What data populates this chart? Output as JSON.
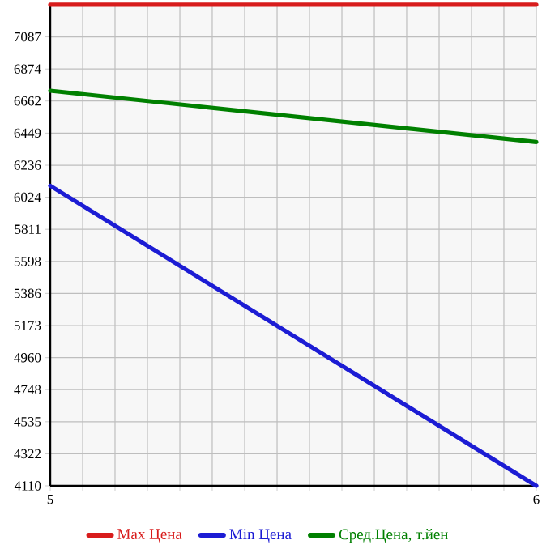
{
  "chart_data": {
    "type": "line",
    "x": [
      5,
      6
    ],
    "series": [
      {
        "name": "Max Цена",
        "color": "#d81c1c",
        "values": [
          7300,
          7300
        ]
      },
      {
        "name": "Min Цена",
        "color": "#1c1cd4",
        "values": [
          6100,
          4110
        ]
      },
      {
        "name": "Сред.Цена, т.йен",
        "color": "#008000",
        "values": [
          6730,
          6390
        ]
      }
    ],
    "xlim": [
      5,
      6
    ],
    "xticks": [
      5,
      {
        "value": 5.0667,
        "label": null
      },
      {
        "value": 5.1333,
        "label": null
      },
      {
        "value": 5.2,
        "label": null
      },
      {
        "value": 5.2667,
        "label": null
      },
      {
        "value": 5.3333,
        "label": null
      },
      {
        "value": 5.4,
        "label": null
      },
      {
        "value": 5.4667,
        "label": null
      },
      {
        "value": 5.5333,
        "label": null
      },
      {
        "value": 5.6,
        "label": null
      },
      {
        "value": 5.6667,
        "label": null
      },
      {
        "value": 5.7333,
        "label": null
      },
      {
        "value": 5.8,
        "label": null
      },
      {
        "value": 5.8667,
        "label": null
      },
      {
        "value": 5.9333,
        "label": null
      },
      6
    ],
    "ylim": [
      4110,
      7310
    ],
    "yticks": [
      4110,
      4322,
      4535,
      4748,
      4960,
      5173,
      5386,
      5598,
      5811,
      6024,
      6236,
      6449,
      6662,
      6874,
      7087
    ],
    "grid": true,
    "legend": "bottom",
    "marker": "none",
    "line_style": "solid"
  }
}
